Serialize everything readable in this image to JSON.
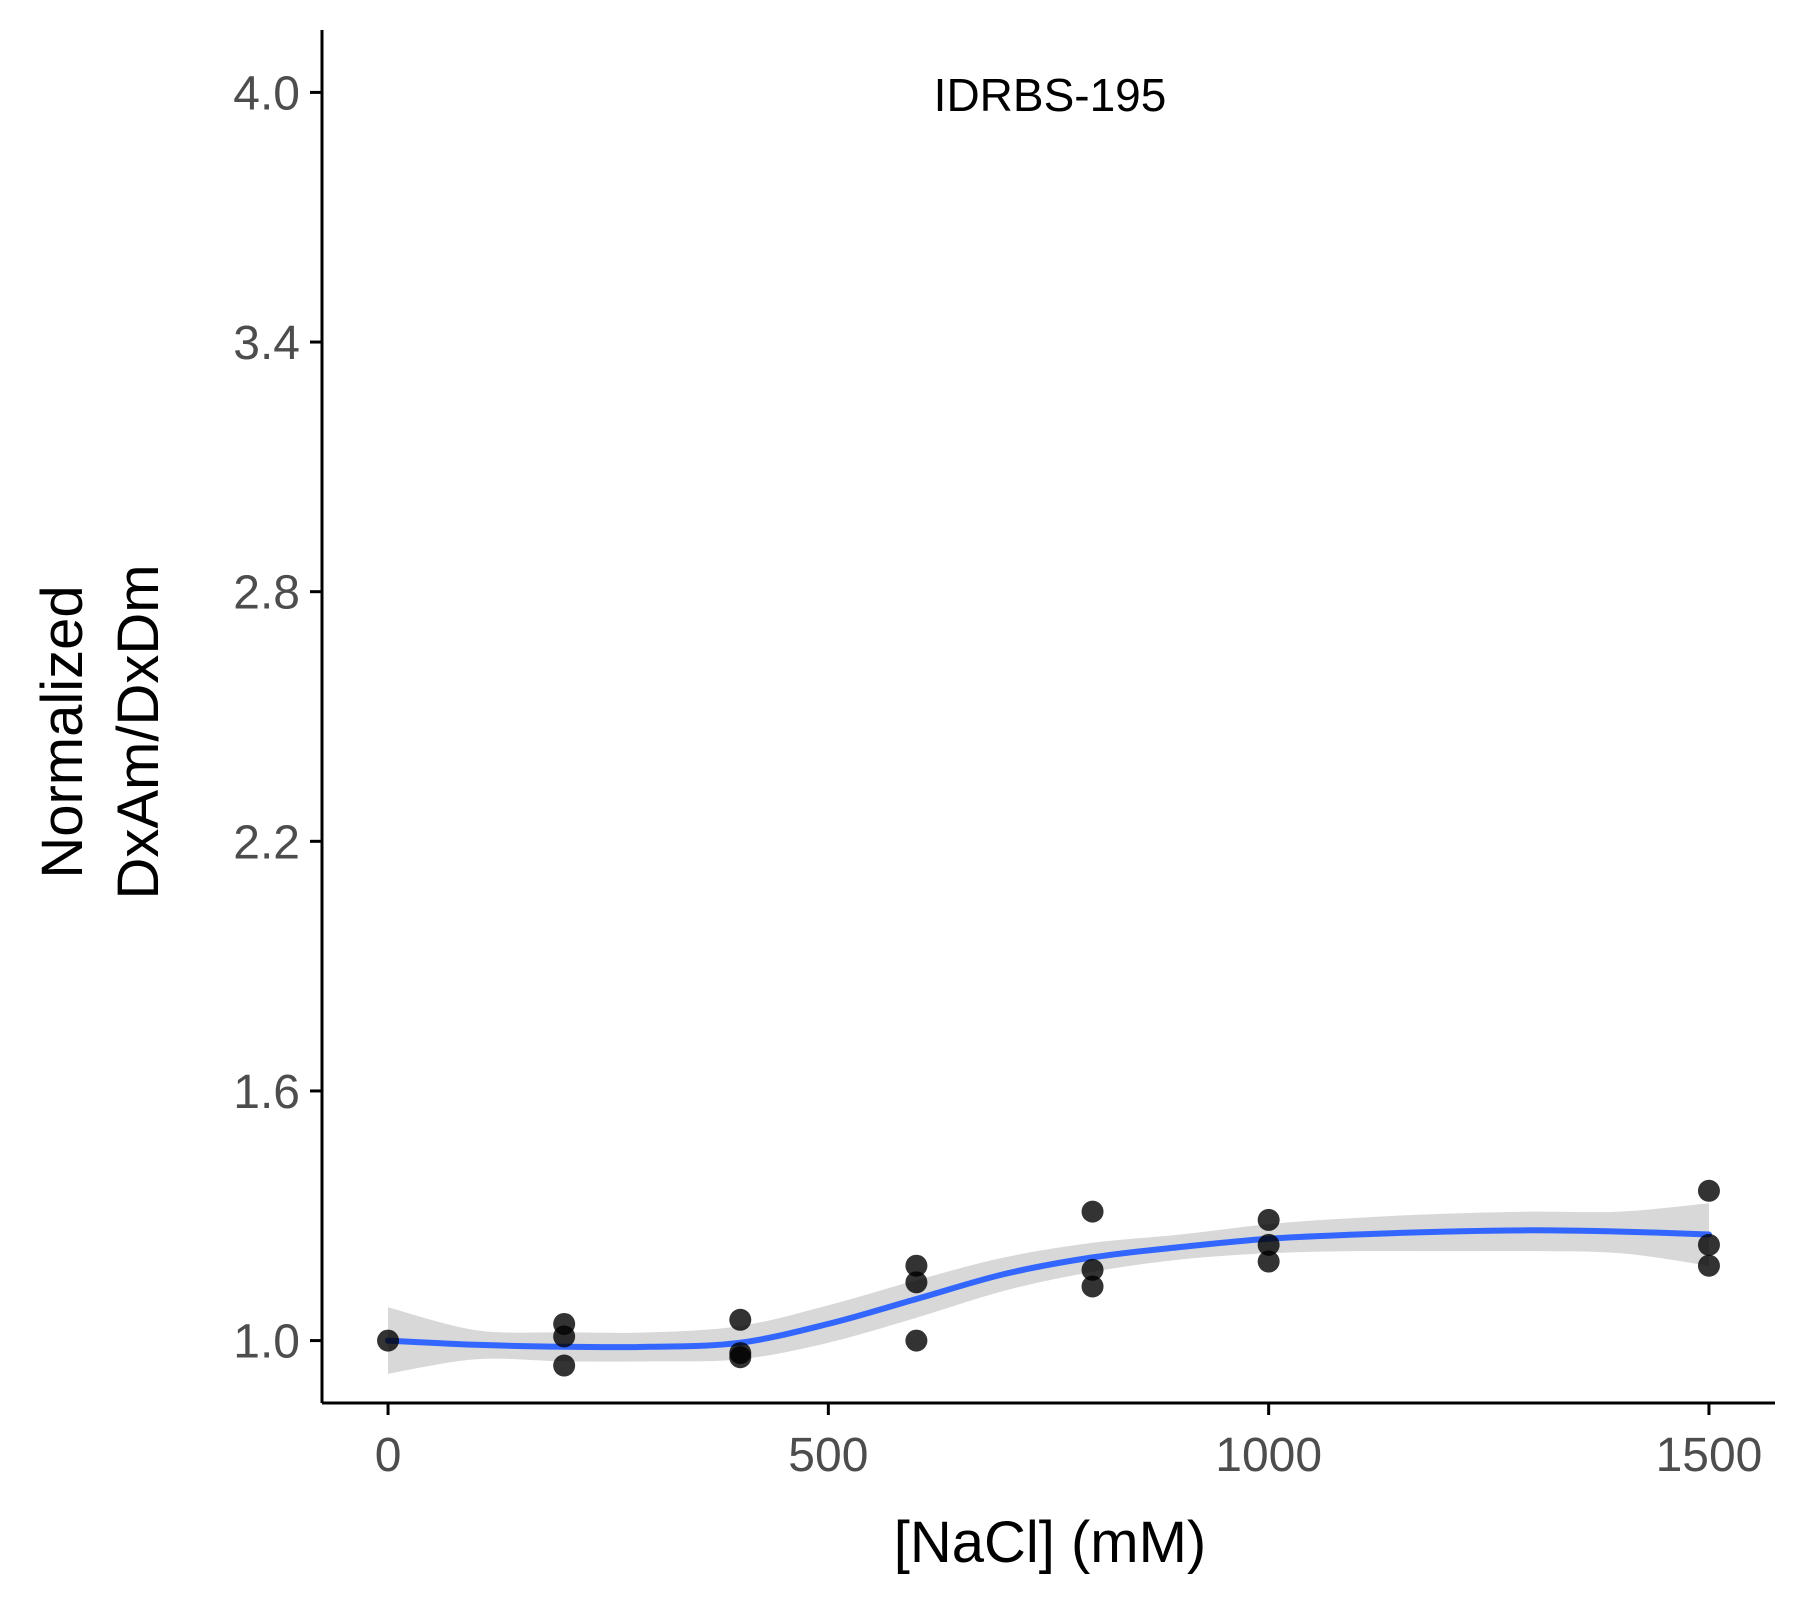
{
  "chart_data": {
    "type": "scatter",
    "annotation": "IDRBS-195",
    "xlabel": "[NaCl] (mM)",
    "ylabel_lines": [
      "Normalized",
      "DxAm/DxDm"
    ],
    "xlim": [
      -75,
      1575
    ],
    "ylim": [
      0.85,
      4.15
    ],
    "x_ticks": [
      0,
      500,
      1000,
      1500
    ],
    "x_tick_labels": [
      "0",
      "500",
      "1000",
      "1500"
    ],
    "y_ticks": [
      1.0,
      1.6,
      2.2,
      2.8,
      3.4,
      4.0
    ],
    "y_tick_labels": [
      "1.0",
      "1.6",
      "2.2",
      "2.8",
      "3.4",
      "4.0"
    ],
    "grid": false,
    "colors": {
      "points": "#000000",
      "smooth_line": "#3366ff",
      "confidence_band": "#bebebe"
    },
    "points": [
      {
        "x": 0,
        "y": 1.0
      },
      {
        "x": 200,
        "y": 1.04
      },
      {
        "x": 200,
        "y": 1.01
      },
      {
        "x": 200,
        "y": 0.94
      },
      {
        "x": 400,
        "y": 1.05
      },
      {
        "x": 400,
        "y": 0.97
      },
      {
        "x": 400,
        "y": 0.96
      },
      {
        "x": 600,
        "y": 1.18
      },
      {
        "x": 600,
        "y": 1.14
      },
      {
        "x": 600,
        "y": 1.0
      },
      {
        "x": 800,
        "y": 1.31
      },
      {
        "x": 800,
        "y": 1.17
      },
      {
        "x": 800,
        "y": 1.13
      },
      {
        "x": 1000,
        "y": 1.29
      },
      {
        "x": 1000,
        "y": 1.23
      },
      {
        "x": 1000,
        "y": 1.19
      },
      {
        "x": 1500,
        "y": 1.36
      },
      {
        "x": 1500,
        "y": 1.23
      },
      {
        "x": 1500,
        "y": 1.18
      }
    ],
    "smooth": {
      "method": "loess",
      "x": [
        0,
        100,
        200,
        300,
        400,
        500,
        600,
        700,
        800,
        900,
        1000,
        1100,
        1200,
        1300,
        1400,
        1500
      ],
      "y": [
        1.0,
        0.99,
        0.985,
        0.985,
        0.995,
        1.04,
        1.1,
        1.16,
        1.2,
        1.225,
        1.245,
        1.255,
        1.262,
        1.265,
        1.262,
        1.255
      ],
      "lower": [
        0.92,
        0.955,
        0.95,
        0.95,
        0.955,
        0.995,
        1.055,
        1.12,
        1.165,
        1.195,
        1.21,
        1.215,
        1.215,
        1.215,
        1.21,
        1.18
      ],
      "upper": [
        1.08,
        1.025,
        1.02,
        1.02,
        1.035,
        1.085,
        1.145,
        1.2,
        1.235,
        1.255,
        1.28,
        1.295,
        1.305,
        1.31,
        1.31,
        1.33
      ]
    }
  }
}
